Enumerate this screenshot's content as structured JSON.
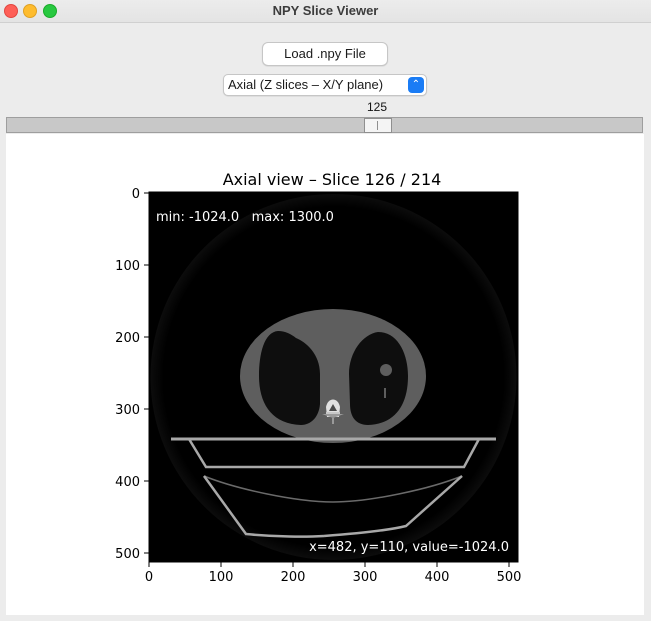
{
  "window": {
    "title": "NPY Slice Viewer"
  },
  "controls": {
    "load_button_label": "Load .npy File",
    "view_select": {
      "selected": "Axial (Z slices – X/Y plane)"
    },
    "slider": {
      "value": "125",
      "min": 0,
      "max": 213,
      "current": 125
    }
  },
  "plot": {
    "title": "Axial view – Slice 126 / 214",
    "stats_text": "min: -1024.0   max: 1300.0",
    "cursor_readout": "x=482, y=110, value=-1024.0"
  },
  "chart_data": {
    "type": "heatmap",
    "title": "Axial view – Slice 126 / 214",
    "xlim": [
      0,
      512
    ],
    "ylim": [
      512,
      0
    ],
    "x_ticks": [
      "0",
      "100",
      "200",
      "300",
      "400",
      "500"
    ],
    "y_ticks": [
      "0",
      "100",
      "200",
      "300",
      "400",
      "500"
    ],
    "value_range": {
      "min": -1024.0,
      "max": 1300.0
    },
    "colormap": "gray"
  }
}
